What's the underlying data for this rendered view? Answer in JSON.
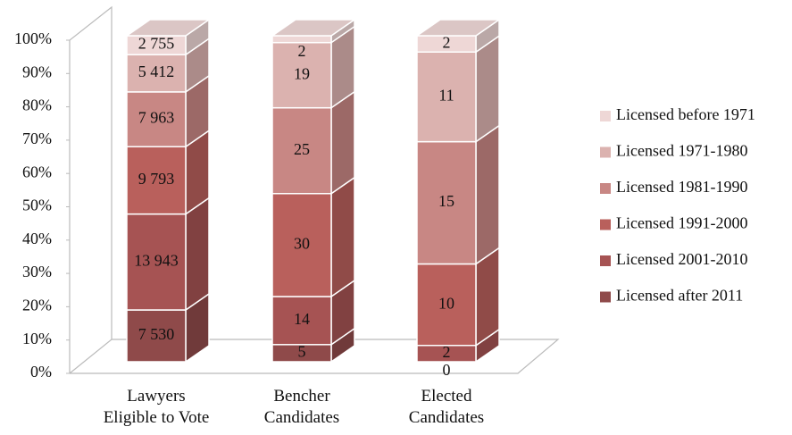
{
  "chart_data": {
    "type": "bar",
    "stacked": "percent",
    "categories": [
      "Lawyers\nEligible to Vote",
      "Bencher\nCandidates",
      "Elected\nCandidates"
    ],
    "series": [
      {
        "name": "Licensed after 2011",
        "color": "#8f4a4a",
        "values": [
          7530,
          5,
          0
        ],
        "value_labels": [
          "7 530",
          "5",
          "0"
        ]
      },
      {
        "name": "Licensed 2001-2010",
        "color": "#a65353",
        "values": [
          13943,
          14,
          2
        ],
        "value_labels": [
          "13 943",
          "14",
          "2"
        ]
      },
      {
        "name": "Licensed 1991-2000",
        "color": "#b9605c",
        "values": [
          9793,
          30,
          10
        ],
        "value_labels": [
          "9 793",
          "30",
          "10"
        ]
      },
      {
        "name": "Licensed 1981-1990",
        "color": "#c88784",
        "values": [
          7963,
          25,
          15
        ],
        "value_labels": [
          "7 963",
          "25",
          "15"
        ]
      },
      {
        "name": "Licensed 1971-1980",
        "color": "#dbb2af",
        "values": [
          5412,
          19,
          11
        ],
        "value_labels": [
          "5 412",
          "19",
          "11"
        ]
      },
      {
        "name": "Licensed before 1971",
        "color": "#eed7d6",
        "values": [
          2755,
          2,
          2
        ],
        "value_labels": [
          "2 755",
          "2",
          "2"
        ]
      }
    ],
    "ylim": [
      0,
      100
    ],
    "yticks": [
      {
        "value": 0,
        "label": "0%"
      },
      {
        "value": 10,
        "label": "10%"
      },
      {
        "value": 20,
        "label": "20%"
      },
      {
        "value": 30,
        "label": "30%"
      },
      {
        "value": 40,
        "label": "40%"
      },
      {
        "value": 50,
        "label": "50%"
      },
      {
        "value": 60,
        "label": "60%"
      },
      {
        "value": 70,
        "label": "70%"
      },
      {
        "value": 80,
        "label": "80%"
      },
      {
        "value": 90,
        "label": "90%"
      },
      {
        "value": 100,
        "label": "100%"
      }
    ],
    "legend": "right"
  }
}
